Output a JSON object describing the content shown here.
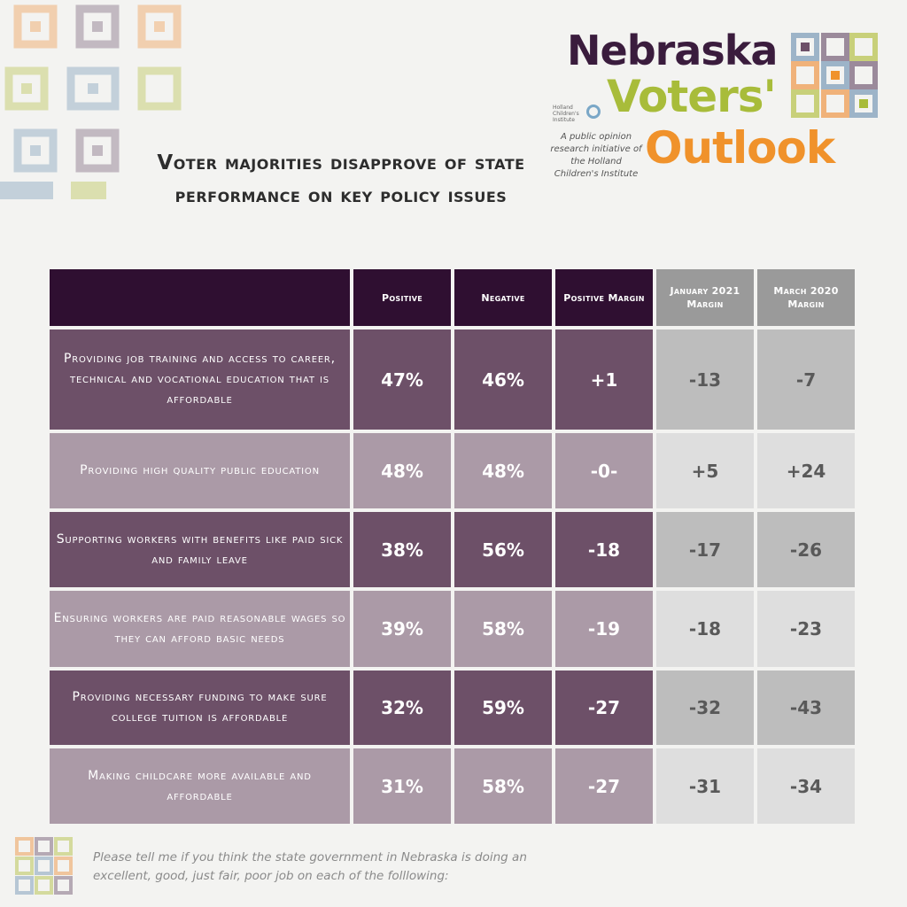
{
  "title": "Voter majorities disapprove of state performance on key policy issues",
  "brand": {
    "line1": "Nebraska",
    "line2": "Voters'",
    "line3": "Outlook",
    "institute": "Holland Children's Institute",
    "tagline": "A public opinion research initiative of the Holland Children's Institute",
    "colors": {
      "line1": "#3a1c3d",
      "line2": "#a8bc3a",
      "line3": "#f0922b"
    }
  },
  "footnote": "Please tell me if you think the state government in Nebraska is doing an excellent, good, just fair, poor job on each of the folllowing:",
  "table": {
    "headers": [
      "",
      "Positive",
      "Negative",
      "Positive Margin",
      "January 2021 Margin",
      "March 2020 Margin"
    ],
    "rows": [
      {
        "issue": "Providing job training and access to career, technical and vocational education that is affordable",
        "positive": "47%",
        "negative": "46%",
        "margin": "+1",
        "jan2021": "-13",
        "mar2020": "-7"
      },
      {
        "issue": "Providing high quality public education",
        "positive": "48%",
        "negative": "48%",
        "margin": "-0-",
        "jan2021": "+5",
        "mar2020": "+24"
      },
      {
        "issue": "Supporting workers with benefits like paid sick and family leave",
        "positive": "38%",
        "negative": "56%",
        "margin": "-18",
        "jan2021": "-17",
        "mar2020": "-26"
      },
      {
        "issue": "Ensuring workers are paid reasonable wages so they can afford basic needs",
        "positive": "39%",
        "negative": "58%",
        "margin": "-19",
        "jan2021": "-18",
        "mar2020": "-23"
      },
      {
        "issue": "Providing necessary funding to make sure college tuition is affordable",
        "positive": "32%",
        "negative": "59%",
        "margin": "-27",
        "jan2021": "-32",
        "mar2020": "-43"
      },
      {
        "issue": "Making childcare more available and affordable",
        "positive": "31%",
        "negative": "58%",
        "margin": "-27",
        "jan2021": "-31",
        "mar2020": "-34"
      }
    ]
  },
  "chart_data": {
    "type": "table",
    "title": "Voter majorities disapprove of state performance on key policy issues",
    "columns": [
      "Positive",
      "Negative",
      "Positive Margin",
      "January 2021 Margin",
      "March 2020 Margin"
    ],
    "categories": [
      "Providing job training and access to career, technical and vocational education that is affordable",
      "Providing high quality public education",
      "Supporting workers with benefits like paid sick and family leave",
      "Ensuring workers are paid reasonable wages so they can afford basic needs",
      "Providing necessary funding to make sure college tuition is affordable",
      "Making childcare more available and affordable"
    ],
    "series": [
      {
        "name": "Positive",
        "values": [
          47,
          48,
          38,
          39,
          32,
          31
        ]
      },
      {
        "name": "Negative",
        "values": [
          46,
          48,
          56,
          58,
          59,
          58
        ]
      },
      {
        "name": "Positive Margin",
        "values": [
          1,
          0,
          -18,
          -19,
          -27,
          -27
        ]
      },
      {
        "name": "January 2021 Margin",
        "values": [
          -13,
          5,
          -17,
          -18,
          -32,
          -31
        ]
      },
      {
        "name": "March 2020 Margin",
        "values": [
          -7,
          24,
          -26,
          -23,
          -43,
          -34
        ]
      }
    ],
    "colors": {
      "header_dark": "#2f0f31",
      "header_grey": "#9a9a9a",
      "row_dark": "#6d5068",
      "row_light": "#ab9aa7",
      "grey_dark": "#bdbdbd",
      "grey_light": "#dedede"
    }
  }
}
